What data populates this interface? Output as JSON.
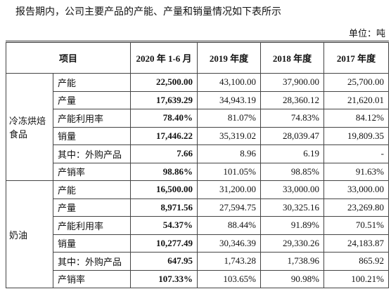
{
  "header": {
    "intro": "报告期内，公司主要产品的产能、产量和销量情况如下表所示",
    "unit": "单位：吨"
  },
  "table": {
    "columns": [
      "项目",
      "2020 年 1-6 月",
      "2019 年度",
      "2018 年度",
      "2017 年度"
    ],
    "groups": [
      {
        "name": "冷冻烘焙食品",
        "rows": [
          [
            "产能",
            "22,500.00",
            "43,100.00",
            "37,900.00",
            "25,700.00"
          ],
          [
            "产量",
            "17,639.29",
            "34,943.19",
            "28,360.12",
            "21,620.01"
          ],
          [
            "产能利用率",
            "78.40%",
            "81.07%",
            "74.83%",
            "84.12%"
          ],
          [
            "销量",
            "17,446.22",
            "35,319.02",
            "28,039.47",
            "19,809.35"
          ],
          [
            "其中：外购产品",
            "7.66",
            "8.96",
            "6.19",
            "-"
          ],
          [
            "产销率",
            "98.86%",
            "101.05%",
            "98.85%",
            "91.63%"
          ]
        ]
      },
      {
        "name": "奶油",
        "rows": [
          [
            "产能",
            "16,500.00",
            "31,200.00",
            "33,000.00",
            "33,000.00"
          ],
          [
            "产量",
            "8,971.56",
            "27,594.75",
            "30,325.16",
            "23,269.80"
          ],
          [
            "产能利用率",
            "54.37%",
            "88.44%",
            "91.89%",
            "70.51%"
          ],
          [
            "销量",
            "10,277.49",
            "30,346.39",
            "29,330.26",
            "24,183.87"
          ],
          [
            "其中：外购产品",
            "647.95",
            "1,743.28",
            "1,738.96",
            "865.92"
          ],
          [
            "产销率",
            "107.33%",
            "103.65%",
            "90.98%",
            "100.21%"
          ]
        ]
      }
    ]
  }
}
